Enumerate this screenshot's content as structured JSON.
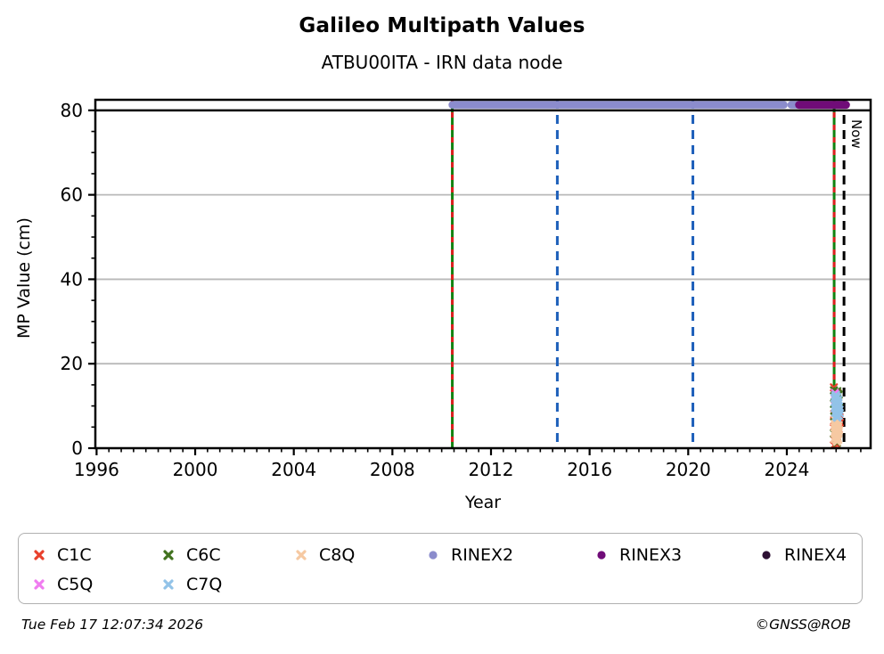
{
  "header": {
    "title": "Galileo Multipath Values",
    "subtitle": "ATBU00ITA - IRN data node"
  },
  "footer": {
    "timestamp": "Tue Feb 17 12:07:34 2026",
    "credit": "©GNSS@ROB"
  },
  "chart_data": {
    "type": "scatter",
    "title": "Galileo Multipath Values",
    "subtitle": "ATBU00ITA - IRN data node",
    "xlabel": "Year",
    "ylabel": "MP Value (cm)",
    "xlim": [
      1995.95,
      2027.4
    ],
    "ylim": [
      0,
      82.5
    ],
    "xticks": [
      1996,
      2000,
      2004,
      2008,
      2012,
      2016,
      2020,
      2024
    ],
    "x_minor_step": 0.5,
    "yticks": [
      0,
      20,
      40,
      60,
      80
    ],
    "y_minor_step": 5,
    "grid": {
      "show": true,
      "color": "#b9b9b9",
      "horizontal_at": [
        20,
        40,
        60
      ]
    },
    "frame_color": "#000000",
    "hlines": [
      {
        "y": 80,
        "color": "#000000",
        "style": "solid",
        "width": 2.5
      }
    ],
    "vlines": [
      {
        "x": 2010.43,
        "style": "green-red-dashed",
        "colors": [
          "#118211",
          "#dd1f1f"
        ],
        "label": ""
      },
      {
        "x": 2014.69,
        "style": "dashed",
        "colors": [
          "#1d5fba"
        ],
        "label": ""
      },
      {
        "x": 2020.19,
        "style": "dashed",
        "colors": [
          "#1d5fba"
        ],
        "label": ""
      },
      {
        "x": 2025.92,
        "style": "green-red-dashed",
        "colors": [
          "#118211",
          "#dd1f1f"
        ],
        "label": ""
      },
      {
        "x": 2026.32,
        "style": "dashed",
        "colors": [
          "#000000"
        ],
        "label": "Now"
      }
    ],
    "now_label": "Now",
    "bands": [
      {
        "name": "RINEX2",
        "color": "#8b8ccc",
        "y": 81.3,
        "thickness": 8.5,
        "x_segments": [
          [
            2010.43,
            2023.88
          ],
          [
            2024.18,
            2024.68
          ]
        ]
      },
      {
        "name": "RINEX3",
        "color": "#700c78",
        "y": 81.3,
        "thickness": 9,
        "x_segments": [
          [
            2024.5,
            2026.4
          ]
        ]
      }
    ],
    "series": [
      {
        "name": "C1C",
        "marker": "x",
        "color": "#e8402c",
        "points": [
          [
            2025.91,
            14.4
          ],
          [
            2026.06,
            13.0
          ],
          [
            2025.92,
            8.1
          ],
          [
            2026.1,
            7.8
          ],
          [
            2026.14,
            7.3
          ],
          [
            2026.12,
            6.6
          ],
          [
            2025.91,
            6.2
          ],
          [
            2026.09,
            5.7
          ],
          [
            2026.15,
            6.1
          ],
          [
            2025.92,
            5.1
          ],
          [
            2026.1,
            4.6
          ],
          [
            2025.91,
            2.1
          ],
          [
            2025.92,
            0.7
          ],
          [
            2026.02,
            0.9
          ]
        ]
      },
      {
        "name": "C6C",
        "marker": "x",
        "color": "#41721f",
        "points": [
          [
            2025.91,
            13.7
          ],
          [
            2025.97,
            13.3
          ],
          [
            2026.05,
            13.5
          ],
          [
            2026.11,
            12.7
          ],
          [
            2025.93,
            12.3
          ],
          [
            2026.07,
            12.9
          ],
          [
            2025.91,
            10.5
          ],
          [
            2026.13,
            9.7
          ],
          [
            2025.92,
            7.5
          ],
          [
            2026.0,
            6.7
          ],
          [
            2025.91,
            3.5
          ],
          [
            2026.04,
            1.3
          ]
        ]
      },
      {
        "name": "C8Q",
        "marker": "x",
        "color": "#f6c9a2",
        "points": [
          [
            2025.94,
            6.8
          ],
          [
            2025.98,
            6.5
          ],
          [
            2026.03,
            6.9
          ],
          [
            2026.08,
            6.3
          ],
          [
            2025.95,
            5.8
          ],
          [
            2026.0,
            5.6
          ],
          [
            2026.05,
            5.9
          ],
          [
            2026.1,
            5.4
          ],
          [
            2025.93,
            4.9
          ],
          [
            2025.98,
            4.6
          ],
          [
            2026.03,
            4.4
          ],
          [
            2026.08,
            4.8
          ],
          [
            2026.12,
            4.3
          ],
          [
            2025.95,
            3.8
          ],
          [
            2026.0,
            3.5
          ],
          [
            2026.05,
            3.3
          ],
          [
            2026.1,
            3.7
          ],
          [
            2025.97,
            2.9
          ],
          [
            2026.02,
            2.6
          ],
          [
            2026.07,
            2.4
          ],
          [
            2026.0,
            1.9
          ],
          [
            2026.04,
            1.5
          ],
          [
            2026.09,
            2.0
          ],
          [
            2025.93,
            2.2
          ],
          [
            2025.96,
            4.2
          ],
          [
            2026.06,
            4.1
          ]
        ]
      },
      {
        "name": "RINEX2",
        "marker": "circle",
        "color": "#8b8ccc",
        "points": []
      },
      {
        "name": "RINEX3",
        "marker": "circle",
        "color": "#700c78",
        "points": []
      },
      {
        "name": "RINEX4",
        "marker": "circle",
        "color": "#2d1033",
        "points": []
      },
      {
        "name": "C5Q",
        "marker": "x",
        "color": "#f07cf0",
        "points": [
          [
            2025.95,
            13.1
          ],
          [
            2025.99,
            12.7
          ],
          [
            2025.93,
            11.9
          ],
          [
            2026.0,
            12.3
          ],
          [
            2025.96,
            11.4
          ]
        ]
      },
      {
        "name": "C7Q",
        "marker": "x",
        "color": "#92c3e8",
        "points": [
          [
            2025.93,
            11.9
          ],
          [
            2025.96,
            12.4
          ],
          [
            2026.0,
            12.6
          ],
          [
            2026.05,
            12.1
          ],
          [
            2025.95,
            11.0
          ],
          [
            2026.0,
            11.3
          ],
          [
            2026.06,
            11.1
          ],
          [
            2026.1,
            10.7
          ],
          [
            2025.97,
            10.3
          ],
          [
            2026.02,
            10.1
          ],
          [
            2026.07,
            9.9
          ],
          [
            2026.12,
            9.9
          ],
          [
            2025.94,
            9.5
          ],
          [
            2026.0,
            9.2
          ],
          [
            2026.04,
            8.9
          ],
          [
            2026.09,
            8.7
          ],
          [
            2026.14,
            9.1
          ],
          [
            2025.96,
            8.4
          ],
          [
            2026.02,
            8.2
          ],
          [
            2026.06,
            7.9
          ],
          [
            2026.11,
            7.7
          ],
          [
            2026.0,
            7.5
          ],
          [
            2026.05,
            7.2
          ],
          [
            2026.15,
            8.3
          ],
          [
            2026.09,
            11.5
          ],
          [
            2025.98,
            9.8
          ]
        ]
      }
    ],
    "legend": {
      "position": "bottom",
      "items": [
        {
          "label": "C1C",
          "marker": "x",
          "color": "#e8402c"
        },
        {
          "label": "C6C",
          "marker": "x",
          "color": "#41721f"
        },
        {
          "label": "C8Q",
          "marker": "x",
          "color": "#f6c9a2"
        },
        {
          "label": "RINEX2",
          "marker": "circle",
          "color": "#8b8ccc"
        },
        {
          "label": "RINEX3",
          "marker": "circle",
          "color": "#700c78"
        },
        {
          "label": "RINEX4",
          "marker": "circle",
          "color": "#2d1033"
        },
        {
          "label": "C5Q",
          "marker": "x",
          "color": "#f07cf0"
        },
        {
          "label": "C7Q",
          "marker": "x",
          "color": "#92c3e8"
        }
      ]
    }
  }
}
